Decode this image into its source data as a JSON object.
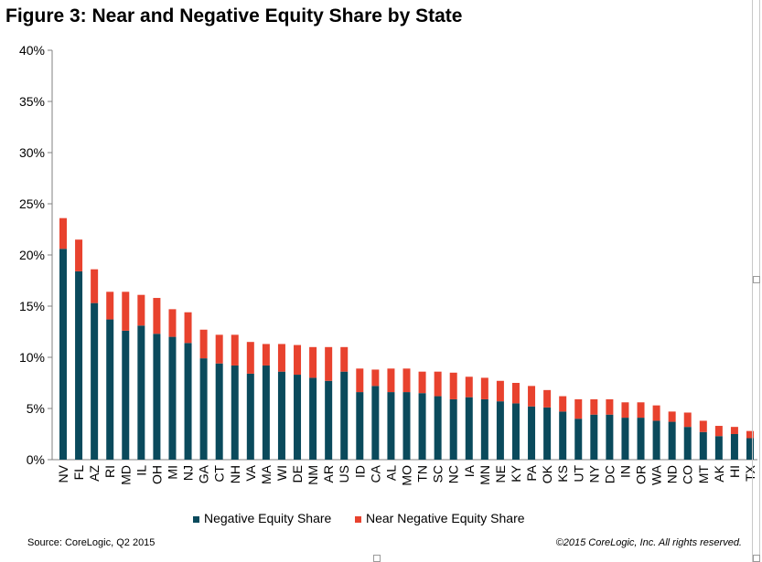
{
  "chart_data": {
    "type": "bar",
    "stacked": true,
    "title": "Figure 3: Near and Negative Equity Share by State",
    "categories": [
      "NV",
      "FL",
      "AZ",
      "RI",
      "MD",
      "IL",
      "OH",
      "MI",
      "NJ",
      "GA",
      "CT",
      "NH",
      "VA",
      "MA",
      "WI",
      "DE",
      "NM",
      "AR",
      "US",
      "ID",
      "CA",
      "AL",
      "MO",
      "TN",
      "SC",
      "NC",
      "IA",
      "MN",
      "NE",
      "KY",
      "PA",
      "OK",
      "KS",
      "UT",
      "NY",
      "DC",
      "IN",
      "OR",
      "WA",
      "ND",
      "CO",
      "MT",
      "AK",
      "HI",
      "TX"
    ],
    "series": [
      {
        "name": "Negative Equity Share",
        "color": "#0a4a5c",
        "values": [
          20.6,
          18.4,
          15.3,
          13.7,
          12.6,
          13.1,
          12.3,
          12.0,
          11.4,
          9.9,
          9.4,
          9.2,
          8.4,
          9.2,
          8.6,
          8.3,
          8.0,
          7.7,
          8.6,
          6.6,
          7.2,
          6.6,
          6.6,
          6.5,
          6.2,
          5.9,
          6.1,
          5.9,
          5.7,
          5.5,
          5.2,
          5.1,
          4.7,
          4.0,
          4.4,
          4.4,
          4.1,
          4.1,
          3.8,
          3.7,
          3.2,
          2.7,
          2.3,
          2.5,
          2.1
        ]
      },
      {
        "name": "Near Negative Equity Share",
        "color": "#e8422e",
        "values": [
          3.0,
          3.1,
          3.3,
          2.7,
          3.8,
          3.0,
          3.5,
          2.7,
          3.0,
          2.8,
          2.8,
          3.0,
          3.1,
          2.1,
          2.7,
          2.9,
          3.0,
          3.3,
          2.4,
          2.3,
          1.6,
          2.3,
          2.3,
          2.1,
          2.4,
          2.6,
          2.0,
          2.1,
          2.0,
          2.0,
          2.0,
          1.7,
          1.5,
          1.9,
          1.5,
          1.5,
          1.5,
          1.5,
          1.5,
          1.0,
          1.4,
          1.1,
          1.0,
          0.7,
          0.7
        ]
      }
    ],
    "yaxis": {
      "min": 0,
      "max": 40,
      "step": 5,
      "tick_labels": [
        "0%",
        "5%",
        "10%",
        "15%",
        "20%",
        "25%",
        "30%",
        "35%",
        "40%"
      ]
    },
    "grid": false,
    "legend_position": "bottom"
  },
  "footer": {
    "source": "Source: CoreLogic, Q2  2015",
    "copyright": "©2015 CoreLogic, Inc. All rights reserved."
  }
}
